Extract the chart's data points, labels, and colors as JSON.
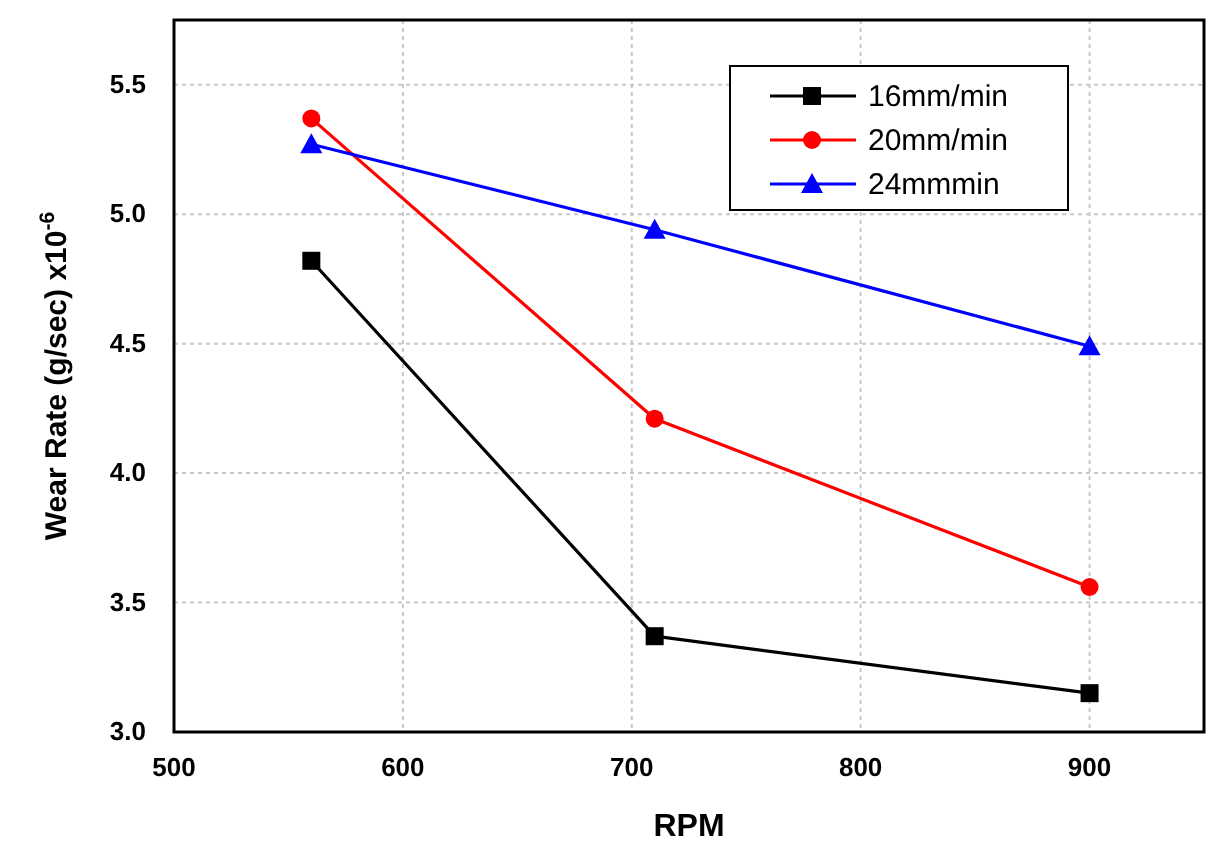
{
  "chart_data": {
    "type": "line",
    "xlabel": "RPM",
    "ylabel": "Wear Rate (g/sec) x10$^{-6}$",
    "x": [
      560,
      710,
      900
    ],
    "series": [
      {
        "name": "16mm/min",
        "color": "#000000",
        "marker": "square",
        "values": [
          4.82,
          3.37,
          3.15
        ]
      },
      {
        "name": "20mm/min",
        "color": "#ff0000",
        "marker": "circle",
        "values": [
          5.37,
          4.21,
          3.56
        ]
      },
      {
        "name": "24mmmin",
        "color": "#0000ff",
        "marker": "triangle",
        "values": [
          5.27,
          4.94,
          4.49
        ]
      }
    ],
    "xlim": [
      500,
      950
    ],
    "xticks": [
      500,
      600,
      700,
      800,
      900
    ],
    "ylim": [
      3.0,
      5.75
    ],
    "yticks": [
      {
        "value": 3,
        "label": "3.0"
      },
      {
        "value": 3.5,
        "label": "3.5"
      },
      {
        "value": 4,
        "label": "4.0"
      },
      {
        "value": 4.5,
        "label": "4.5"
      },
      {
        "value": 5,
        "label": "5.0"
      },
      {
        "value": 5.5,
        "label": "5.5"
      }
    ],
    "grid": true,
    "legend": "top right"
  }
}
